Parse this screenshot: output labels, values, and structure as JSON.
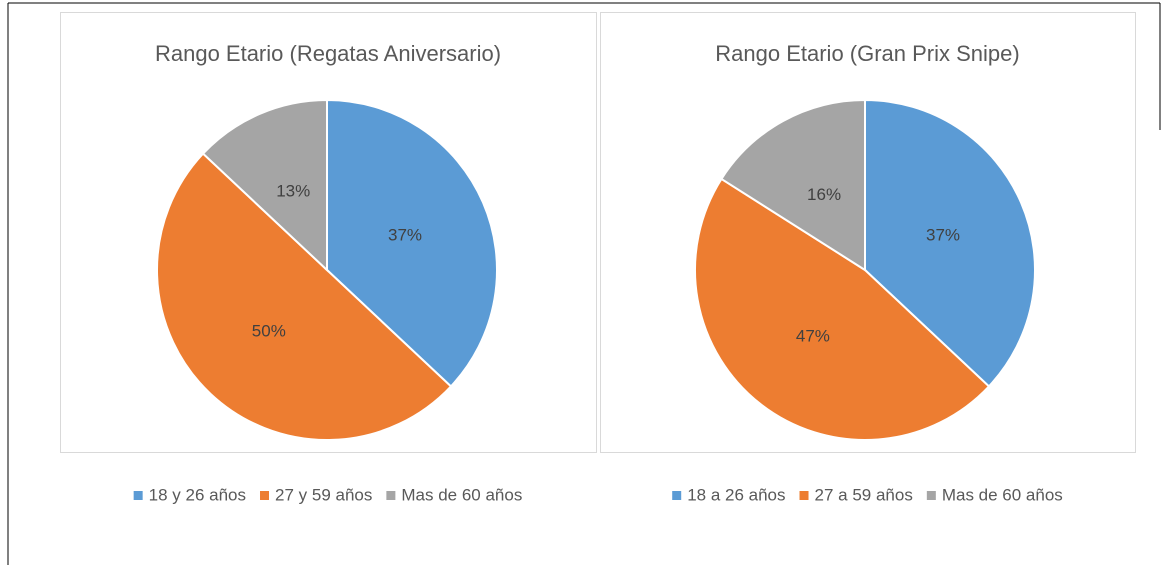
{
  "chart_data": [
    {
      "type": "pie",
      "title": "Rango Etario (Regatas Aniversario)",
      "categories": [
        "18 y 26 años",
        "27 y 59 años",
        "Mas de 60 años"
      ],
      "values": [
        37,
        50,
        13
      ],
      "value_labels": [
        "37%",
        "50%",
        "13%"
      ],
      "colors": [
        "#5b9bd5",
        "#ed7d31",
        "#a5a5a5"
      ]
    },
    {
      "type": "pie",
      "title": "Rango Etario (Gran Prix Snipe)",
      "categories": [
        "18 a 26 años",
        "27 a 59 años",
        "Mas de 60 años"
      ],
      "values": [
        37,
        47,
        16
      ],
      "value_labels": [
        "37%",
        "47%",
        "16%"
      ],
      "colors": [
        "#5b9bd5",
        "#ed7d31",
        "#a5a5a5"
      ]
    }
  ]
}
